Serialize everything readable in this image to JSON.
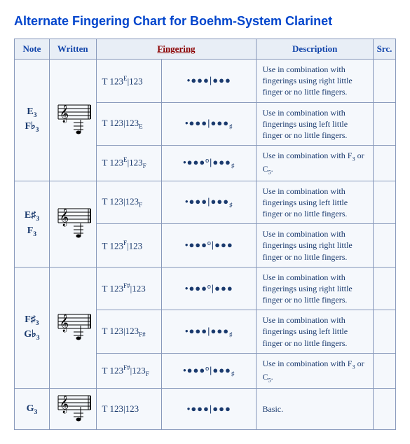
{
  "title": "Alternate Fingering Chart for Boehm-System Clarinet",
  "colors": {
    "title": "#0044cc",
    "header_bg": "#e8eef6",
    "header_text": "#1144aa",
    "fingering_header": "#8b0000",
    "border": "#8899bb",
    "cell_bg": "#f5f8fc",
    "cell_text": "#1a3a6e"
  },
  "headers": {
    "note": "Note",
    "written": "Written",
    "fingering": "Fingering",
    "description": "Description",
    "src": "Src."
  },
  "groups": [
    {
      "note_html": "E<sub>3</sub><br>F♭<sub>3</sub>",
      "rows": [
        {
          "ftext_html": "T 123<sup>E</sup>|123",
          "diagram": "•●●●|●●●",
          "desc": "Use in combination with fingerings using right little finger or no little fingers."
        },
        {
          "ftext_html": "T 123|123<sub>E</sub>",
          "diagram": "•●●●|●●●<sub>♯</sub>",
          "desc": "Use in combination with fingerings using left little finger or no little fingers."
        },
        {
          "ftext_html": "T 123<sup>E</sup>|123<sub>F</sub>",
          "diagram": "•●●●º|●●●<sub>♯</sub>",
          "desc_html": "Use in combination with F<sub>3</sub> or C<sub>5</sub>."
        }
      ]
    },
    {
      "note_html": "E♯<sub>3</sub><br>F<sub>3</sub>",
      "rows": [
        {
          "ftext_html": "T 123|123<sub>F</sub>",
          "diagram": "•●●●|●●●<sub>♯</sub>",
          "desc": "Use in combination with fingerings using left little finger or no little fingers."
        },
        {
          "ftext_html": "T 123<sup>F</sup>|123",
          "diagram": "•●●●º|●●●",
          "desc": "Use in combination with fingerings using right little finger or no little fingers."
        }
      ]
    },
    {
      "note_html": "F♯<sub>3</sub><br>G♭<sub>3</sub>",
      "rows": [
        {
          "ftext_html": "T 123<sup>F#</sup>|123",
          "diagram": "•●●●º|●●●",
          "desc": "Use in combination with fingerings using right little finger or no little fingers."
        },
        {
          "ftext_html": "T 123|123<sub>F#</sub>",
          "diagram": "•●●●|●●●<sub>♯</sub>",
          "desc": "Use in combination with fingerings using left little finger or no little fingers."
        },
        {
          "ftext_html": "T 123<sup>F#</sup>|123<sub>F</sub>",
          "diagram": "•●●●º|●●●<sub>♯</sub>",
          "desc_html": "Use in combination with F<sub>3</sub> or C<sub>5</sub>."
        }
      ]
    },
    {
      "note_html": "G<sub>3</sub>",
      "rows": [
        {
          "ftext_html": "T 123|123",
          "diagram": "•●●●|●●●",
          "desc": "Basic."
        }
      ]
    }
  ]
}
